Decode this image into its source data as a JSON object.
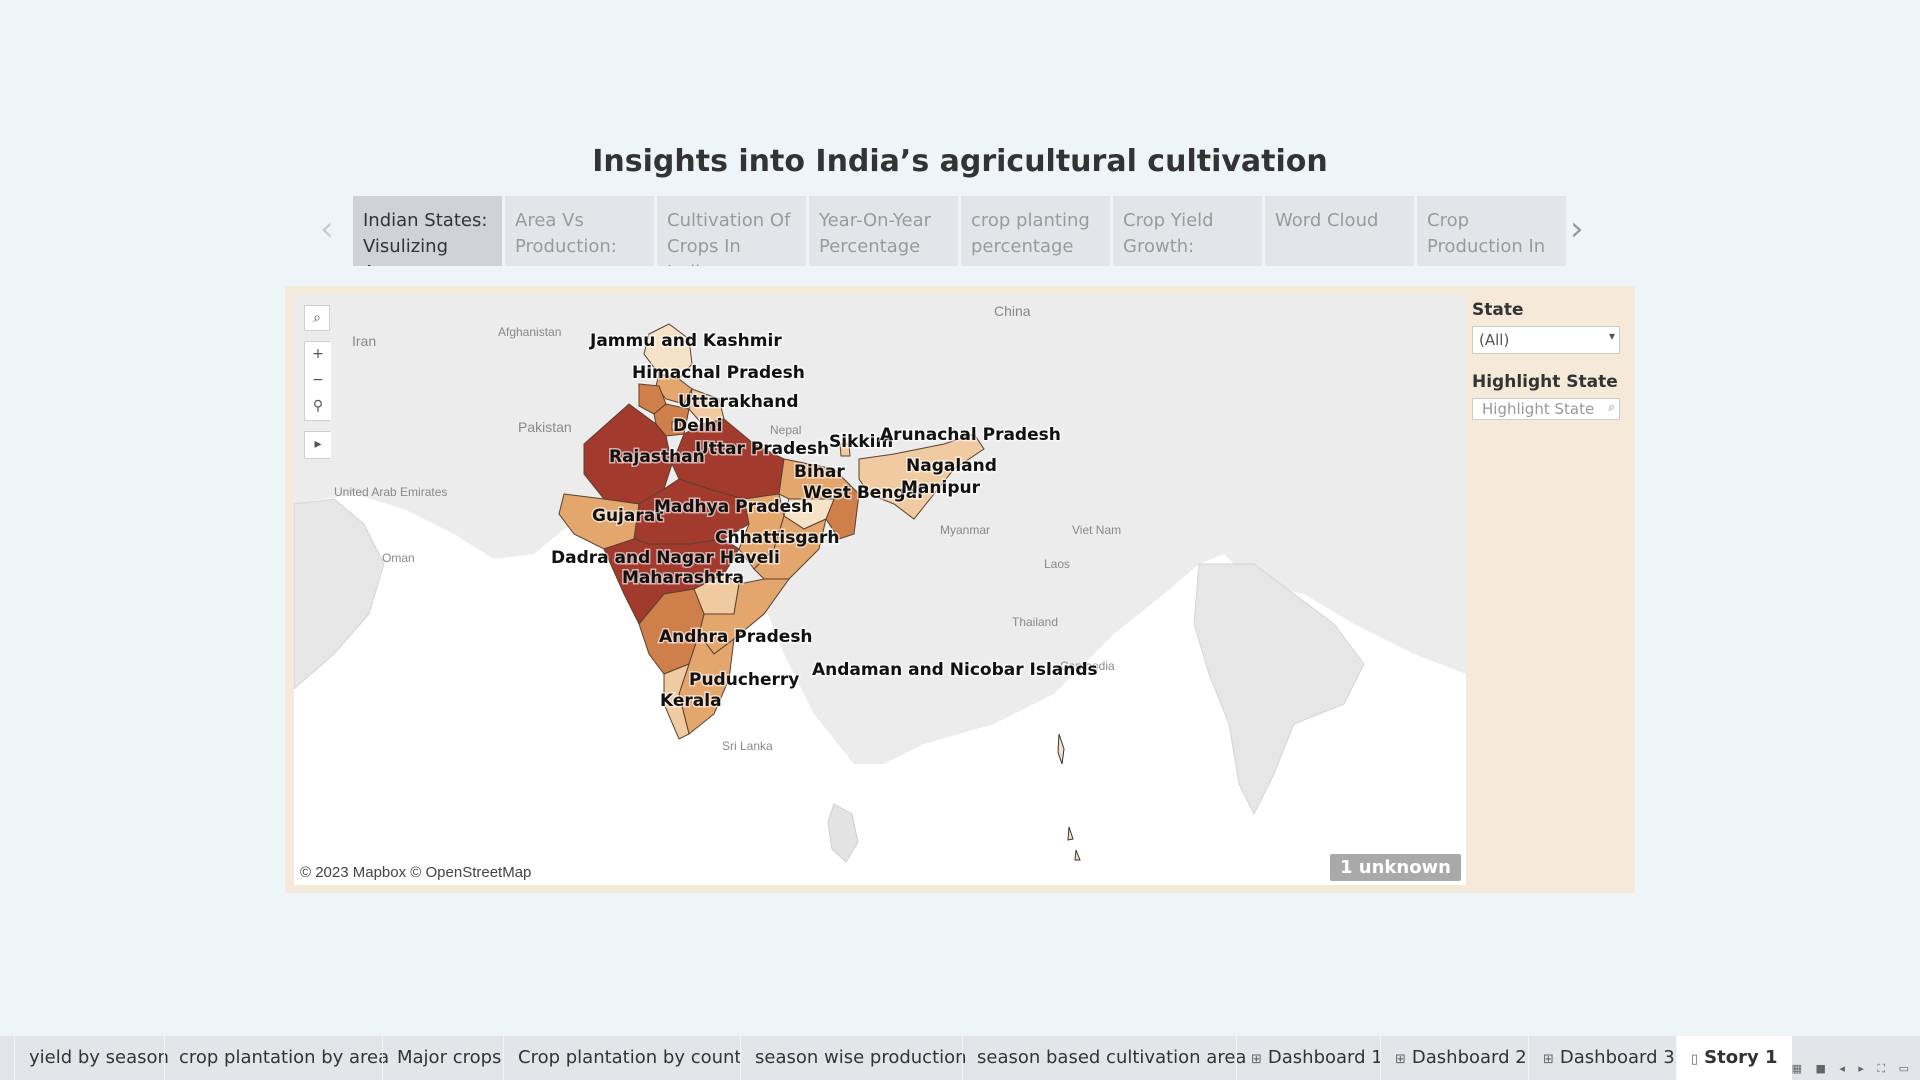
{
  "story": {
    "title": "Insights into India’s agricultural cultivation",
    "points": [
      {
        "label": "Indian States: Visulizing Area"
      },
      {
        "label": "Area Vs Production:"
      },
      {
        "label": "Cultivation Of Crops In India:"
      },
      {
        "label": "Year-On-Year Percentage"
      },
      {
        "label": "crop planting percentage"
      },
      {
        "label": "Crop Yield Growth:"
      },
      {
        "label": "Word Cloud"
      },
      {
        "label": "Crop Production In"
      }
    ]
  },
  "map": {
    "attribution": "© 2023 Mapbox © OpenStreetMap",
    "unknown_badge": "1 unknown",
    "region_labels": [
      "Jammu and Kashmir",
      "Himachal Pradesh",
      "Uttarakhand",
      "Delhi",
      "Uttar Pradesh",
      "Rajasthan",
      "Bihar",
      "West Bengal",
      "Sikkim",
      "Arunachal Pradesh",
      "Nagaland",
      "Manipur",
      "Gujarat",
      "Madhya Pradesh",
      "Chhattisgarh",
      "Dadra and Nagar Haveli",
      "Maharashtra",
      "Andhra Pradesh",
      "Puducherry",
      "Kerala",
      "Andaman and Nicobar Islands"
    ],
    "basemap_labels": [
      "Iran",
      "Afghanistan",
      "Pakistan",
      "China",
      "Nepal",
      "United Arab Emirates",
      "Oman",
      "Myanmar",
      "Viet Nam",
      "Laos",
      "Thailand",
      "Cambodia",
      "Sri Lanka"
    ],
    "colors": {
      "highest": "#a23a2e",
      "high": "#cf7f4a",
      "mid": "#e3a66d",
      "low": "#f0caa0",
      "lowest": "#f6e2c7",
      "water": "#ffffff",
      "land": "#ececec"
    }
  },
  "filters": {
    "state_title": "State",
    "state_value": "(All)",
    "highlight_title": "Highlight State",
    "highlight_placeholder": "Highlight State"
  },
  "tabs": [
    {
      "label": "yield by season"
    },
    {
      "label": "crop plantation by area"
    },
    {
      "label": "Major crops"
    },
    {
      "label": "Crop plantation by count"
    },
    {
      "label": "season wise production"
    },
    {
      "label": "season based cultivation area"
    },
    {
      "label": "Dashboard 1"
    },
    {
      "label": "Dashboard 2"
    },
    {
      "label": "Dashboard 3"
    },
    {
      "label": "Story 1"
    }
  ]
}
